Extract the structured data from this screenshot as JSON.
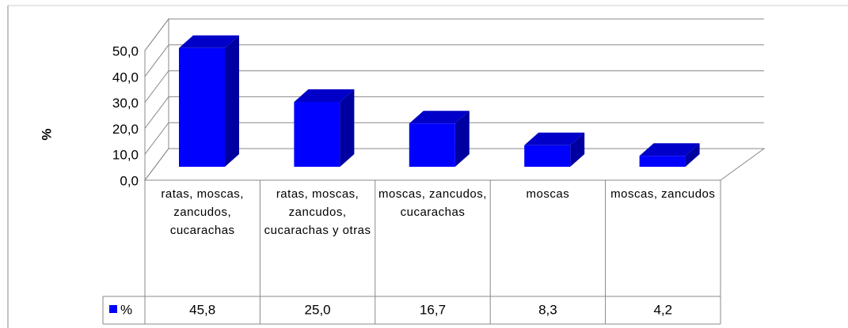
{
  "chart_data": {
    "type": "bar3d",
    "y_axis_label": "%",
    "categories": [
      "ratas, moscas, zancudos, cucarachas",
      "ratas, moscas, zancudos, cucarachas y otras",
      "moscas, zancudos, cucarachas",
      "moscas",
      "moscas, zancudos"
    ],
    "series": [
      {
        "name": "%",
        "color": "#0000ff",
        "values": [
          45.8,
          25.0,
          16.7,
          8.3,
          4.2
        ],
        "value_labels": [
          "45,8",
          "25,0",
          "16,7",
          "8,3",
          "4,2"
        ]
      }
    ],
    "ylim": [
      0,
      50
    ],
    "yticks": [
      {
        "value": 0,
        "label": "0,0"
      },
      {
        "value": 10,
        "label": "10,0"
      },
      {
        "value": 20,
        "label": "20,0"
      },
      {
        "value": 30,
        "label": "30,0"
      },
      {
        "value": 40,
        "label": "40,0"
      },
      {
        "value": 50,
        "label": "50,0"
      }
    ],
    "grid": true
  }
}
